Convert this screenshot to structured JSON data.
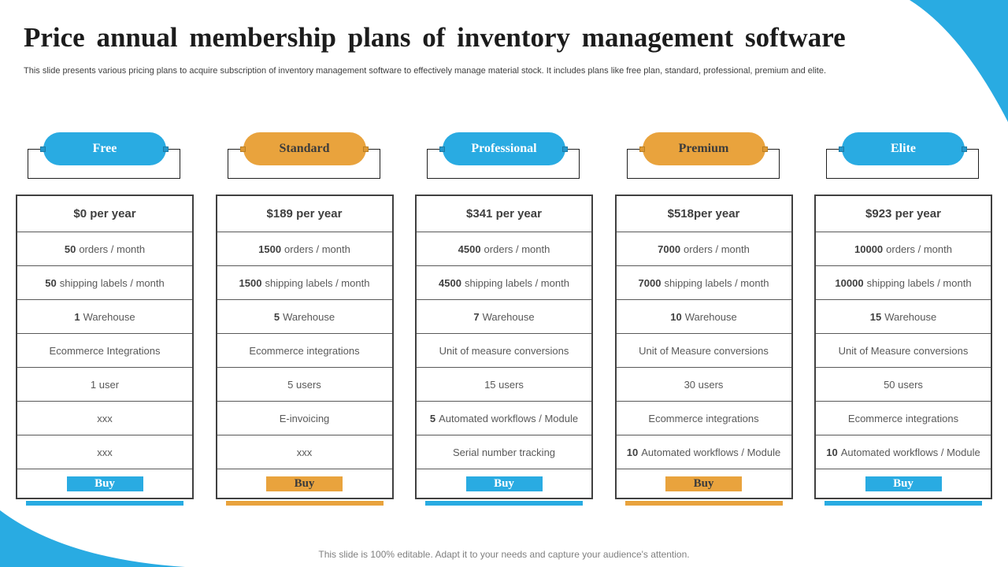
{
  "page": {
    "title": "Price annual membership plans of inventory management software",
    "subtitle": "This slide presents various pricing plans to acquire subscription of inventory management software to effectively manage material stock. It includes plans like free plan, standard, professional, premium and elite.",
    "footer": "This slide is 100% editable. Adapt it to your needs and capture your audience's attention."
  },
  "colors": {
    "accent_blue": "#29ABE2",
    "accent_orange": "#E9A33D",
    "table_border": "#404040",
    "row_divider": "#595959",
    "feature_text": "#595959",
    "strong_text": "#404040"
  },
  "buy_label": "Buy",
  "plans": [
    {
      "name": "Free",
      "theme": "blue",
      "price": "$0 per year",
      "features": [
        {
          "b": "50",
          "t": "orders / month"
        },
        {
          "b": "50",
          "t": "shipping labels / month"
        },
        {
          "b": "1",
          "t": "Warehouse"
        },
        {
          "b": "",
          "t": "Ecommerce Integrations"
        },
        {
          "b": "",
          "t": "1 user"
        },
        {
          "b": "",
          "t": "xxx"
        },
        {
          "b": "",
          "t": "xxx"
        }
      ]
    },
    {
      "name": "Standard",
      "theme": "orange",
      "price": "$189 per year",
      "features": [
        {
          "b": "1500",
          "t": "orders / month"
        },
        {
          "b": "1500",
          "t": "shipping labels / month"
        },
        {
          "b": "5",
          "t": "Warehouse"
        },
        {
          "b": "",
          "t": "Ecommerce integrations"
        },
        {
          "b": "",
          "t": "5 users"
        },
        {
          "b": "",
          "t": "E-invoicing"
        },
        {
          "b": "",
          "t": "xxx"
        }
      ]
    },
    {
      "name": "Professional",
      "theme": "blue",
      "price": "$341 per year",
      "features": [
        {
          "b": "4500",
          "t": "orders / month"
        },
        {
          "b": "4500",
          "t": "shipping labels / month"
        },
        {
          "b": "7",
          "t": "Warehouse"
        },
        {
          "b": "",
          "t": "Unit of measure conversions"
        },
        {
          "b": "",
          "t": "15 users"
        },
        {
          "b": "5",
          "t": "Automated workflows / Module"
        },
        {
          "b": "",
          "t": "Serial number tracking"
        }
      ]
    },
    {
      "name": "Premium",
      "theme": "orange",
      "price": "$518per year",
      "features": [
        {
          "b": "7000",
          "t": "orders / month"
        },
        {
          "b": "7000",
          "t": "shipping labels / month"
        },
        {
          "b": "10",
          "t": "Warehouse"
        },
        {
          "b": "",
          "t": "Unit of Measure conversions"
        },
        {
          "b": "",
          "t": "30 users"
        },
        {
          "b": "",
          "t": "Ecommerce integrations"
        },
        {
          "b": "10",
          "t": "Automated workflows / Module"
        }
      ]
    },
    {
      "name": "Elite",
      "theme": "blue",
      "price": "$923 per year",
      "features": [
        {
          "b": "10000",
          "t": "orders / month"
        },
        {
          "b": "10000",
          "t": "shipping labels / month"
        },
        {
          "b": "15",
          "t": "Warehouse"
        },
        {
          "b": "",
          "t": "Unit of Measure conversions"
        },
        {
          "b": "",
          "t": "50 users"
        },
        {
          "b": "",
          "t": "Ecommerce integrations"
        },
        {
          "b": "10",
          "t": "Automated workflows / Module"
        }
      ]
    }
  ]
}
